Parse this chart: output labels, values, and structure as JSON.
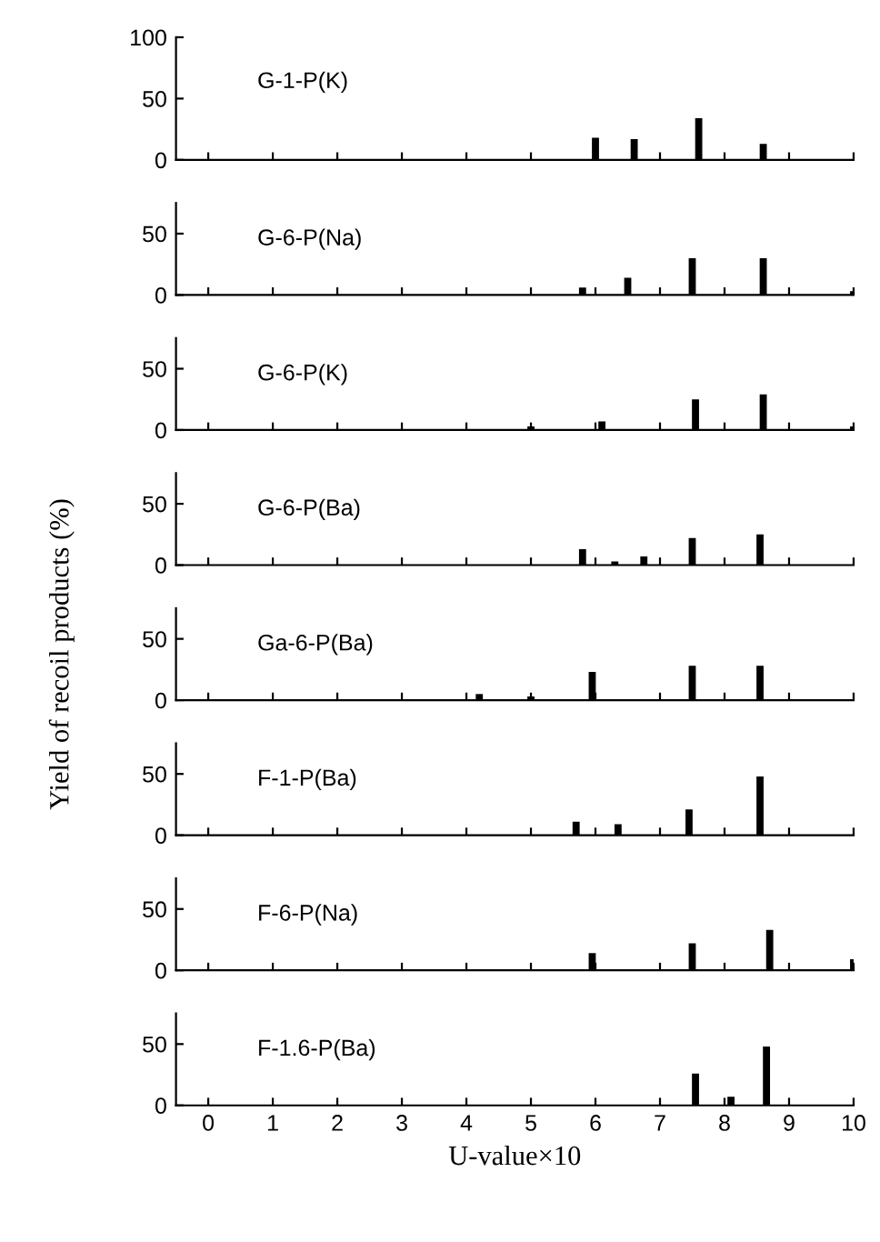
{
  "chart_data": [
    {
      "type": "bar",
      "title": "G-1-P(K)",
      "x": [
        6.0,
        6.6,
        7.6,
        8.6
      ],
      "values": [
        18,
        17,
        34,
        13
      ],
      "color": "#000000",
      "xlim": [
        -0.5,
        10
      ],
      "ylim": [
        0,
        100
      ],
      "yticks": [
        0,
        50,
        100
      ],
      "xticks": [
        0,
        1,
        2,
        3,
        4,
        5,
        6,
        7,
        8,
        9,
        10
      ],
      "tick_labels": "y",
      "grid": false,
      "legend": false
    },
    {
      "type": "bar",
      "title": "G-6-P(Na)",
      "x": [
        5.8,
        6.5,
        7.5,
        8.6,
        10.0
      ],
      "values": [
        6,
        14,
        30,
        30,
        3
      ],
      "color": "#000000",
      "xlim": [
        -0.5,
        10
      ],
      "ylim": [
        0,
        75
      ],
      "yticks": [
        0,
        50
      ],
      "xticks": [
        0,
        1,
        2,
        3,
        4,
        5,
        6,
        7,
        8,
        9,
        10
      ],
      "tick_labels": "y",
      "grid": false,
      "legend": false
    },
    {
      "type": "bar",
      "title": "G-6-P(K)",
      "x": [
        5.0,
        6.1,
        7.55,
        8.6,
        10.0
      ],
      "values": [
        3,
        7,
        25,
        29,
        3
      ],
      "color": "#000000",
      "xlim": [
        -0.5,
        10
      ],
      "ylim": [
        0,
        75
      ],
      "yticks": [
        0,
        50
      ],
      "xticks": [
        0,
        1,
        2,
        3,
        4,
        5,
        6,
        7,
        8,
        9,
        10
      ],
      "tick_labels": "y",
      "grid": false,
      "legend": false
    },
    {
      "type": "bar",
      "title": "G-6-P(Ba)",
      "x": [
        5.8,
        6.3,
        6.75,
        7.5,
        8.55
      ],
      "values": [
        13,
        3,
        7,
        22,
        25
      ],
      "color": "#000000",
      "xlim": [
        -0.5,
        10
      ],
      "ylim": [
        0,
        75
      ],
      "yticks": [
        0,
        50
      ],
      "xticks": [
        0,
        1,
        2,
        3,
        4,
        5,
        6,
        7,
        8,
        9,
        10
      ],
      "tick_labels": "y",
      "grid": false,
      "legend": false
    },
    {
      "type": "bar",
      "title": "Ga-6-P(Ba)",
      "ylabel": "Yield of recoil products (%)",
      "x": [
        4.2,
        5.0,
        5.95,
        7.5,
        8.55
      ],
      "values": [
        5,
        3,
        23,
        28,
        28
      ],
      "color": "#000000",
      "xlim": [
        -0.5,
        10
      ],
      "ylim": [
        0,
        75
      ],
      "yticks": [
        0,
        50
      ],
      "xticks": [
        0,
        1,
        2,
        3,
        4,
        5,
        6,
        7,
        8,
        9,
        10
      ],
      "tick_labels": "y",
      "grid": false,
      "legend": false
    },
    {
      "type": "bar",
      "title": "F-1-P(Ba)",
      "x": [
        5.7,
        6.35,
        7.45,
        8.55
      ],
      "values": [
        11,
        9,
        21,
        48
      ],
      "color": "#000000",
      "xlim": [
        -0.5,
        10
      ],
      "ylim": [
        0,
        75
      ],
      "yticks": [
        0,
        50
      ],
      "xticks": [
        0,
        1,
        2,
        3,
        4,
        5,
        6,
        7,
        8,
        9,
        10
      ],
      "tick_labels": "y",
      "grid": false,
      "legend": false
    },
    {
      "type": "bar",
      "title": "F-6-P(Na)",
      "x": [
        5.95,
        7.5,
        8.7,
        10.0
      ],
      "values": [
        14,
        22,
        33,
        9
      ],
      "color": "#000000",
      "xlim": [
        -0.5,
        10
      ],
      "ylim": [
        0,
        75
      ],
      "yticks": [
        0,
        50
      ],
      "xticks": [
        0,
        1,
        2,
        3,
        4,
        5,
        6,
        7,
        8,
        9,
        10
      ],
      "tick_labels": "y",
      "grid": false,
      "legend": false
    },
    {
      "type": "bar",
      "title": "F-1.6-P(Ba)",
      "xlabel": "U-value×10",
      "x": [
        7.55,
        8.1,
        8.65
      ],
      "values": [
        26,
        7,
        48
      ],
      "color": "#000000",
      "xlim": [
        -0.5,
        10
      ],
      "ylim": [
        0,
        75
      ],
      "yticks": [
        0,
        50
      ],
      "xticks": [
        0,
        1,
        2,
        3,
        4,
        5,
        6,
        7,
        8,
        9,
        10
      ],
      "grid": false,
      "legend": false
    }
  ]
}
